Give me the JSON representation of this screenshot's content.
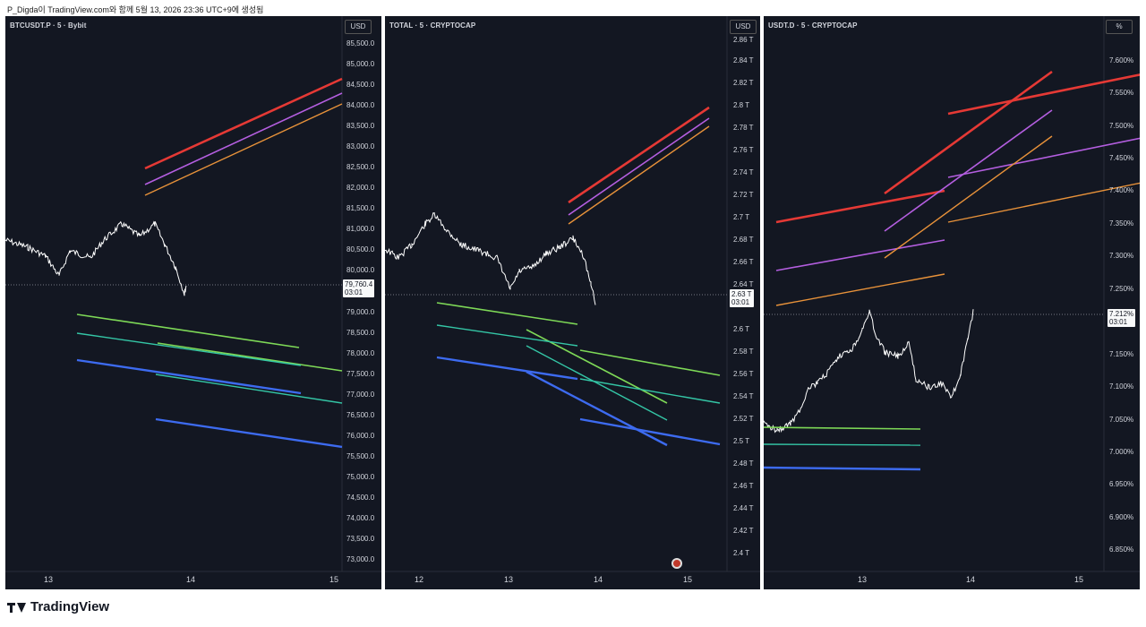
{
  "header_text": "P_Digda이 TradingView.com와 함께 5월 13, 2026 23:36 UTC+9에 생성됨",
  "footer_brand": "TradingView",
  "panels": [
    {
      "title": "BTCUSDT.P · 5 · Bybit",
      "unit": "USD",
      "y_ticks": [
        "85,500.0",
        "85,000.0",
        "84,500.0",
        "84,000.0",
        "83,500.0",
        "83,000.0",
        "82,500.0",
        "82,000.0",
        "81,500.0",
        "81,000.0",
        "80,500.0",
        "80,000.0",
        "79,000.0",
        "78,500.0",
        "78,000.0",
        "77,500.0",
        "77,000.0",
        "76,500.0",
        "76,000.0",
        "75,500.0",
        "75,000.0",
        "74,500.0",
        "74,000.0",
        "73,500.0",
        "73,000.0"
      ],
      "x_ticks": [
        "13",
        "14",
        "15"
      ],
      "last_price": "79,760.4",
      "countdown": "03:01"
    },
    {
      "title": "TOTAL · 5 · CRYPTOCAP",
      "unit": "USD",
      "y_ticks": [
        "2.86 T",
        "2.84 T",
        "2.82 T",
        "2.8 T",
        "2.78 T",
        "2.76 T",
        "2.74 T",
        "2.72 T",
        "2.7 T",
        "2.68 T",
        "2.66 T",
        "2.64 T",
        "2.6 T",
        "2.58 T",
        "2.56 T",
        "2.54 T",
        "2.52 T",
        "2.5 T",
        "2.48 T",
        "2.46 T",
        "2.44 T",
        "2.42 T",
        "2.4 T"
      ],
      "x_ticks": [
        "12",
        "13",
        "14",
        "15"
      ],
      "last_price": "2.63 T",
      "countdown": "03:01"
    },
    {
      "title": "USDT.D · 5 · CRYPTOCAP",
      "unit": "%",
      "y_ticks": [
        "7.600%",
        "7.550%",
        "7.500%",
        "7.450%",
        "7.400%",
        "7.350%",
        "7.300%",
        "7.250%",
        "7.150%",
        "7.100%",
        "7.050%",
        "7.000%",
        "6.950%",
        "6.900%",
        "6.850%"
      ],
      "x_ticks": [
        "13",
        "14",
        "15"
      ],
      "last_price": "7.212%",
      "countdown": "03:01"
    }
  ],
  "colors": {
    "background": "#131722",
    "red": "#e53935",
    "violet": "#b45ee0",
    "orange": "#e8923a",
    "green": "#7ed957",
    "teal": "#34c6a6",
    "blue": "#3d6bf0",
    "price": "#ffffff"
  }
}
